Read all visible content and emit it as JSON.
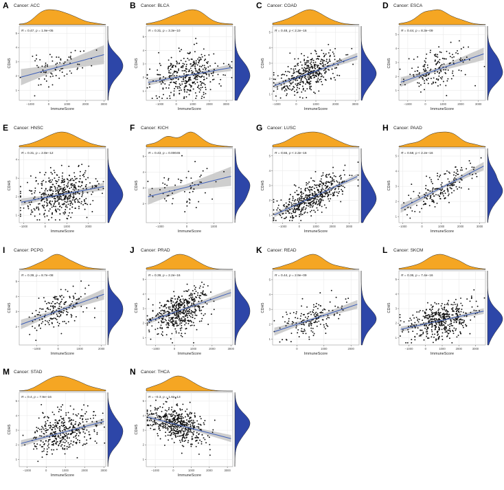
{
  "figure": {
    "colors": {
      "density_x": "#f5a623",
      "density_y": "#2d46a8",
      "points": "#111111",
      "fit_line": "#3b5db8",
      "band": "#bdbdbd",
      "grid": "#e6e6e6",
      "panel_border": "#9a9a9a"
    }
  },
  "chart_data": [
    {
      "type": "scatter",
      "panel_letter": "A",
      "title": "Cancer: ACC",
      "stat_r": "0.47",
      "stat_p": "1.9e−05",
      "xlabel": "ImmuneScore",
      "ylabel": "CDH5",
      "xlim": [
        -1600,
        3100
      ],
      "ylim": [
        0.3,
        5.5
      ],
      "xticks": [
        -1000,
        0,
        1000,
        2000,
        3000
      ],
      "yticks": [
        1,
        2,
        3,
        4,
        5
      ],
      "n_points": 75,
      "seed": 11,
      "x_mean": 500,
      "x_sd": 900,
      "slope": 0.00035,
      "intercept": 2.45,
      "resid_sd": 0.55,
      "band": 0.55
    },
    {
      "type": "scatter",
      "panel_letter": "B",
      "title": "Cancer: BLCA",
      "stat_r": "0.31",
      "stat_p": "3.3e−10",
      "xlabel": "ImmuneScore",
      "ylabel": "CDH5",
      "xlim": [
        -1800,
        3400
      ],
      "ylim": [
        0.3,
        5.8
      ],
      "xticks": [
        -1000,
        0,
        1000,
        2000,
        3000
      ],
      "yticks": [
        1,
        2,
        3,
        4,
        5
      ],
      "n_points": 380,
      "seed": 22,
      "x_mean": 700,
      "x_sd": 1000,
      "slope": 0.00022,
      "intercept": 2.0,
      "resid_sd": 0.8,
      "band": 0.22
    },
    {
      "type": "scatter",
      "panel_letter": "C",
      "title": "Cancer: COAD",
      "stat_r": "0.48",
      "stat_p": "< 2.2e−16",
      "xlabel": "ImmuneScore",
      "ylabel": "CDH5",
      "xlim": [
        -1200,
        3200
      ],
      "ylim": [
        0.6,
        5.4
      ],
      "xticks": [
        -1000,
        0,
        1000,
        2000,
        3000
      ],
      "yticks": [
        1,
        2,
        3,
        4,
        5
      ],
      "n_points": 420,
      "seed": 33,
      "x_mean": 600,
      "x_sd": 800,
      "slope": 0.00045,
      "intercept": 2.05,
      "resid_sd": 0.55,
      "band": 0.18
    },
    {
      "type": "scatter",
      "panel_letter": "D",
      "title": "Cancer: ESCA",
      "stat_r": "0.44",
      "stat_p": "8.3e−09",
      "xlabel": "ImmuneScore",
      "ylabel": "CDH5",
      "xlim": [
        -1500,
        3400
      ],
      "ylim": [
        0.3,
        5.6
      ],
      "xticks": [
        -1000,
        0,
        1000,
        2000,
        3000
      ],
      "yticks": [
        1,
        2,
        3,
        4,
        5
      ],
      "n_points": 170,
      "seed": 44,
      "x_mean": 500,
      "x_sd": 900,
      "slope": 0.00043,
      "intercept": 2.2,
      "resid_sd": 0.65,
      "band": 0.35
    },
    {
      "type": "scatter",
      "panel_letter": "E",
      "title": "Cancer: HNSC",
      "stat_r": "0.31",
      "stat_p": "2.8e−12",
      "xlabel": "ImmuneScore",
      "ylabel": "CDH5",
      "xlim": [
        -1200,
        2800
      ],
      "ylim": [
        0.6,
        4.6
      ],
      "xticks": [
        -1000,
        0,
        1000,
        2000
      ],
      "yticks": [
        1,
        2,
        3,
        4
      ],
      "n_points": 480,
      "seed": 55,
      "x_mean": 700,
      "x_sd": 800,
      "slope": 0.00022,
      "intercept": 1.95,
      "resid_sd": 0.6,
      "band": 0.18
    },
    {
      "type": "scatter",
      "panel_letter": "F",
      "title": "Cancer: KICH",
      "stat_r": "0.43",
      "stat_p": "0.00045",
      "xlabel": "ImmuneScore",
      "ylabel": "CDH5",
      "xlim": [
        -1500,
        1700
      ],
      "ylim": [
        0.8,
        5.5
      ],
      "xticks": [
        -1000,
        0,
        1000
      ],
      "yticks": [
        2,
        3,
        4,
        5
      ],
      "n_points": 62,
      "seed": 66,
      "x_mean": -100,
      "x_sd": 600,
      "slope": 0.00042,
      "intercept": 3.05,
      "resid_sd": 0.6,
      "band": 0.5
    },
    {
      "type": "scatter",
      "panel_letter": "G",
      "title": "Cancer: LUSC",
      "stat_r": "0.55",
      "stat_p": "< 2.2e−16",
      "xlabel": "ImmuneScore",
      "ylabel": "CDH5",
      "xlim": [
        -1600,
        3600
      ],
      "ylim": [
        0.5,
        5.5
      ],
      "xticks": [
        -1000,
        0,
        1000,
        2000,
        3000
      ],
      "yticks": [
        1,
        2,
        3,
        4,
        5
      ],
      "n_points": 480,
      "seed": 77,
      "x_mean": 800,
      "x_sd": 1000,
      "slope": 0.00052,
      "intercept": 1.8,
      "resid_sd": 0.55,
      "band": 0.15
    },
    {
      "type": "scatter",
      "panel_letter": "H",
      "title": "Cancer: PAAD",
      "stat_r": "0.58",
      "stat_p": "< 2.2e−16",
      "xlabel": "ImmuneScore",
      "ylabel": "CDH5",
      "xlim": [
        -1200,
        3300
      ],
      "ylim": [
        0.6,
        5.5
      ],
      "xticks": [
        -1000,
        0,
        1000,
        2000,
        3000
      ],
      "yticks": [
        1,
        2,
        3,
        4,
        5
      ],
      "n_points": 175,
      "seed": 88,
      "x_mean": 1100,
      "x_sd": 800,
      "slope": 0.00065,
      "intercept": 2.25,
      "resid_sd": 0.55,
      "band": 0.25
    },
    {
      "type": "scatter",
      "panel_letter": "I",
      "title": "Cancer: PCPG",
      "stat_r": "0.39",
      "stat_p": "8.7e−08",
      "xlabel": "ImmuneScore",
      "ylabel": "CDH5",
      "xlim": [
        -1800,
        2200
      ],
      "ylim": [
        0.8,
        5.7
      ],
      "xticks": [
        -1000,
        0,
        1000,
        2000
      ],
      "yticks": [
        2,
        3,
        4,
        5
      ],
      "n_points": 180,
      "seed": 99,
      "x_mean": 0,
      "x_sd": 700,
      "slope": 0.00052,
      "intercept": 3.05,
      "resid_sd": 0.6,
      "band": 0.3
    },
    {
      "type": "scatter",
      "panel_letter": "J",
      "title": "Cancer: PRAD",
      "stat_r": "0.39",
      "stat_p": "2.2e−16",
      "xlabel": "ImmuneScore",
      "ylabel": "CDH5",
      "xlim": [
        -1500,
        3100
      ],
      "ylim": [
        0.5,
        5.6
      ],
      "xticks": [
        -1000,
        0,
        1000,
        2000,
        3000
      ],
      "yticks": [
        1,
        2,
        3,
        4,
        5
      ],
      "n_points": 490,
      "seed": 111,
      "x_mean": 300,
      "x_sd": 700,
      "slope": 0.00045,
      "intercept": 2.75,
      "resid_sd": 0.65,
      "band": 0.2
    },
    {
      "type": "scatter",
      "panel_letter": "K",
      "title": "Cancer: READ",
      "stat_r": "0.44",
      "stat_p": "2.9e−09",
      "xlabel": "ImmuneScore",
      "ylabel": "CDH5",
      "xlim": [
        -900,
        2300
      ],
      "ylim": [
        0.6,
        5.6
      ],
      "xticks": [
        0,
        1000,
        2000
      ],
      "yticks": [
        1,
        2,
        3,
        4,
        5
      ],
      "n_points": 165,
      "seed": 122,
      "x_mean": 600,
      "x_sd": 600,
      "slope": 0.0006,
      "intercept": 2.0,
      "resid_sd": 0.55,
      "band": 0.25
    },
    {
      "type": "scatter",
      "panel_letter": "L",
      "title": "Cancer: SKCM",
      "stat_r": "0.36",
      "stat_p": "7.4e−16",
      "xlabel": "ImmuneScore",
      "ylabel": "CDH5",
      "xlim": [
        -1600,
        3600
      ],
      "ylim": [
        0.5,
        5.6
      ],
      "xticks": [
        -1000,
        0,
        1000,
        2000,
        3000
      ],
      "yticks": [
        1,
        2,
        3,
        4,
        5
      ],
      "n_points": 470,
      "seed": 133,
      "x_mean": 900,
      "x_sd": 1000,
      "slope": 0.00025,
      "intercept": 1.95,
      "resid_sd": 0.6,
      "band": 0.17
    },
    {
      "type": "scatter",
      "panel_letter": "M",
      "title": "Cancer: STAD",
      "stat_r": "0.4",
      "stat_p": "7.9e−16",
      "xlabel": "ImmuneScore",
      "ylabel": "CDH5",
      "xlim": [
        -1400,
        3100
      ],
      "ylim": [
        0.5,
        5.6
      ],
      "xticks": [
        -1000,
        0,
        1000,
        2000,
        3000
      ],
      "yticks": [
        1,
        2,
        3,
        4,
        5
      ],
      "n_points": 390,
      "seed": 144,
      "x_mean": 900,
      "x_sd": 900,
      "slope": 0.00035,
      "intercept": 2.55,
      "resid_sd": 0.75,
      "band": 0.2
    },
    {
      "type": "scatter",
      "panel_letter": "N",
      "title": "Cancer: THCA",
      "stat_r": "−0.3",
      "stat_p": "1.6e−13",
      "xlabel": "ImmuneScore",
      "ylabel": "CDH5",
      "xlim": [
        -1500,
        3300
      ],
      "ylim": [
        0.5,
        5.6
      ],
      "xticks": [
        -1000,
        0,
        1000,
        2000,
        3000
      ],
      "yticks": [
        1,
        2,
        3,
        4,
        5
      ],
      "n_points": 500,
      "seed": 155,
      "x_mean": 200,
      "x_sd": 800,
      "slope": -0.00032,
      "intercept": 3.45,
      "resid_sd": 0.6,
      "band": 0.18
    }
  ]
}
